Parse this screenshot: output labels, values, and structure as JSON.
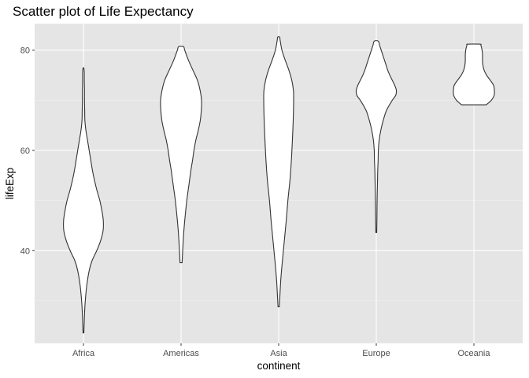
{
  "chart_data": {
    "type": "violin",
    "title": "Scatter plot of Life Expectancy",
    "xlabel": "continent",
    "ylabel": "lifeExp",
    "categories": [
      "Africa",
      "Americas",
      "Asia",
      "Europe",
      "Oceania"
    ],
    "y_ticks": [
      40,
      60,
      80
    ],
    "y_tick_labels": [
      "40",
      "60",
      "80"
    ],
    "ylim": [
      21.5,
      85.3
    ],
    "grid": true,
    "background": "#e5e5e5",
    "violins": [
      {
        "category": "Africa",
        "min": 23.6,
        "max": 76.4,
        "profile": [
          [
            23.6,
            0.02
          ],
          [
            26,
            0.04
          ],
          [
            28,
            0.06
          ],
          [
            30,
            0.09
          ],
          [
            33,
            0.16
          ],
          [
            36,
            0.28
          ],
          [
            38,
            0.42
          ],
          [
            40,
            0.65
          ],
          [
            42,
            0.84
          ],
          [
            44,
            0.96
          ],
          [
            46,
            0.97
          ],
          [
            48,
            0.9
          ],
          [
            50,
            0.8
          ],
          [
            52,
            0.66
          ],
          [
            54,
            0.54
          ],
          [
            56,
            0.44
          ],
          [
            58,
            0.36
          ],
          [
            60,
            0.28
          ],
          [
            62,
            0.2
          ],
          [
            64,
            0.12
          ],
          [
            66,
            0.07
          ],
          [
            68,
            0.06
          ],
          [
            70,
            0.05
          ],
          [
            72,
            0.05
          ],
          [
            74,
            0.04
          ],
          [
            75.5,
            0.04
          ],
          [
            76.4,
            0.02
          ]
        ]
      },
      {
        "category": "Americas",
        "min": 37.6,
        "max": 80.7,
        "profile": [
          [
            37.6,
            0.05
          ],
          [
            40,
            0.08
          ],
          [
            43,
            0.12
          ],
          [
            46,
            0.18
          ],
          [
            50,
            0.28
          ],
          [
            53,
            0.38
          ],
          [
            56,
            0.48
          ],
          [
            58,
            0.56
          ],
          [
            60,
            0.63
          ],
          [
            62,
            0.72
          ],
          [
            64,
            0.84
          ],
          [
            66,
            0.94
          ],
          [
            68,
            0.99
          ],
          [
            70,
            1.0
          ],
          [
            72,
            0.93
          ],
          [
            74,
            0.8
          ],
          [
            76,
            0.58
          ],
          [
            78,
            0.36
          ],
          [
            80,
            0.18
          ],
          [
            80.7,
            0.12
          ]
        ]
      },
      {
        "category": "Asia",
        "min": 28.8,
        "max": 82.6,
        "profile": [
          [
            28.8,
            0.03
          ],
          [
            31,
            0.06
          ],
          [
            34,
            0.1
          ],
          [
            37,
            0.16
          ],
          [
            40,
            0.23
          ],
          [
            43,
            0.3
          ],
          [
            46,
            0.37
          ],
          [
            50,
            0.45
          ],
          [
            54,
            0.55
          ],
          [
            58,
            0.62
          ],
          [
            62,
            0.67
          ],
          [
            66,
            0.71
          ],
          [
            70,
            0.73
          ],
          [
            72,
            0.72
          ],
          [
            74,
            0.64
          ],
          [
            76,
            0.5
          ],
          [
            78,
            0.32
          ],
          [
            80,
            0.16
          ],
          [
            82,
            0.07
          ],
          [
            82.6,
            0.05
          ]
        ]
      },
      {
        "category": "Europe",
        "min": 43.6,
        "max": 81.8,
        "profile": [
          [
            43.6,
            0.02
          ],
          [
            46,
            0.03
          ],
          [
            50,
            0.04
          ],
          [
            54,
            0.06
          ],
          [
            56,
            0.07
          ],
          [
            58,
            0.09
          ],
          [
            60,
            0.1
          ],
          [
            62,
            0.14
          ],
          [
            64,
            0.22
          ],
          [
            66,
            0.34
          ],
          [
            68,
            0.5
          ],
          [
            70,
            0.78
          ],
          [
            71,
            0.95
          ],
          [
            72,
            0.98
          ],
          [
            73,
            0.9
          ],
          [
            74,
            0.78
          ],
          [
            75,
            0.66
          ],
          [
            76,
            0.56
          ],
          [
            77,
            0.48
          ],
          [
            78,
            0.4
          ],
          [
            79,
            0.32
          ],
          [
            80,
            0.24
          ],
          [
            81,
            0.16
          ],
          [
            81.8,
            0.1
          ]
        ]
      },
      {
        "category": "Oceania",
        "min": 69.1,
        "max": 81.2,
        "profile": [
          [
            69.1,
            0.6
          ],
          [
            70,
            0.85
          ],
          [
            71,
            0.99
          ],
          [
            72,
            1.0
          ],
          [
            73,
            0.96
          ],
          [
            74,
            0.8
          ],
          [
            75,
            0.62
          ],
          [
            76,
            0.5
          ],
          [
            77,
            0.44
          ],
          [
            78,
            0.42
          ],
          [
            79,
            0.42
          ],
          [
            80,
            0.4
          ],
          [
            81,
            0.34
          ],
          [
            81.2,
            0.3
          ]
        ]
      }
    ]
  }
}
